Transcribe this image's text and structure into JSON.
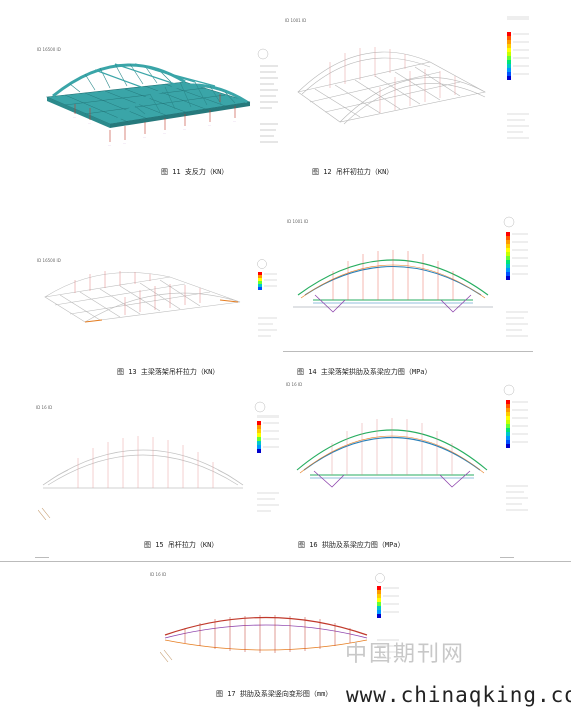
{
  "top_fragment": "",
  "captions": {
    "fig11": "图 11 支反力（KN）",
    "fig12": "图 12 吊杆初拉力（KN）",
    "fig13": "图 13 主梁落架吊杆拉力（KN）",
    "fig14": "图 14 主梁落架拱肋及系梁应力图（MPa）",
    "fig15": "图 15 吊杆拉力（KN）",
    "fig16": "图 16 拱肋及系梁应力图（MPa）",
    "fig17": "图 17 拱肋及系梁竖向变形图（mm）"
  },
  "panel_labels": {
    "p11": "ID 16500      ID",
    "p12": "ID 1001          ID",
    "p13": "ID 16500      ID",
    "p14": "ID 1001        ID",
    "p15": "ID 16          ID",
    "p16": "ID 16          ID",
    "p17": "ID 16          ID"
  },
  "watermark": {
    "cn": "中国期刊网",
    "url": "www.chinaqking.com"
  },
  "colors": {
    "teal": "#3aa5a8",
    "legend_ramp": [
      "#ff0000",
      "#ff5a00",
      "#ff9900",
      "#ffcc00",
      "#ffff00",
      "#c8ff00",
      "#66ff33",
      "#00e676",
      "#00c8c8",
      "#0096ff",
      "#0050ff",
      "#0000cc"
    ]
  }
}
